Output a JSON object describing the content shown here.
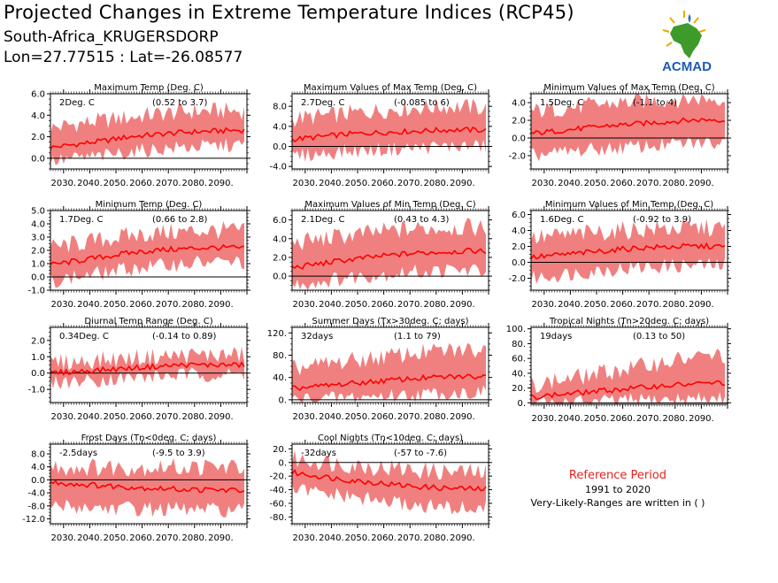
{
  "header": {
    "title": "Projected Changes in Extreme Temperature Indices (RCP45)",
    "location": "South-Africa_KRUGERSDORP",
    "coordinates": "Lon=27.77515 : Lat=-26.08577"
  },
  "logo": {
    "text": "ACMAD",
    "icon": "africa-map-icon"
  },
  "reference": {
    "title": "Reference Period",
    "years": "1991 to 2020",
    "note": "Very-Likely-Ranges are written in ( )"
  },
  "colors": {
    "band": "#f08080",
    "line": "#ff0000",
    "reference_title": "#e8221b"
  },
  "x_ticks": [
    "2030.",
    "2040.",
    "2050.",
    "2060.",
    "2070.",
    "2080.",
    "2090."
  ],
  "chart_data": [
    {
      "type": "area",
      "title": "Maximum Temp (Deg. C)",
      "mean_label": "2Deg. C",
      "range_label": "(0.52 to 3.7)",
      "x": [
        2025,
        2035,
        2045,
        2055,
        2065,
        2075,
        2085,
        2095,
        2099
      ],
      "mean": [
        1.0,
        1.3,
        1.6,
        2.0,
        2.2,
        2.4,
        2.5,
        2.6,
        2.6
      ],
      "low": [
        -0.3,
        0.0,
        0.2,
        0.6,
        0.8,
        1.0,
        1.1,
        1.2,
        1.2
      ],
      "high": [
        2.8,
        3.2,
        3.5,
        3.8,
        4.1,
        4.3,
        4.4,
        4.4,
        4.4
      ],
      "ylim": [
        -1.0,
        6.0
      ],
      "yticks": [
        0.0,
        2.0,
        4.0,
        6.0
      ],
      "ytick_labels": [
        "0.0",
        "2.0",
        "4.0",
        "6.0"
      ]
    },
    {
      "type": "area",
      "title": "Maximum Values of Max Temp (Deg. C)",
      "mean_label": "2.7Deg. C",
      "range_label": "(-0.085 to 6)",
      "x": [
        2025,
        2035,
        2045,
        2055,
        2065,
        2075,
        2085,
        2095,
        2099
      ],
      "mean": [
        1.4,
        1.9,
        2.4,
        2.7,
        2.9,
        3.1,
        3.3,
        3.3,
        3.2
      ],
      "low": [
        -2.0,
        -1.5,
        -1.0,
        -0.8,
        -0.5,
        -0.2,
        0.0,
        0.0,
        0.0
      ],
      "high": [
        5.5,
        6.0,
        6.5,
        7.0,
        7.5,
        7.8,
        8.0,
        7.8,
        7.5
      ],
      "ylim": [
        -4.5,
        10.5
      ],
      "yticks": [
        -4.0,
        0.0,
        4.0,
        8.0
      ],
      "ytick_labels": [
        "-4.0",
        "0.0",
        "4.0",
        "8.0"
      ]
    },
    {
      "type": "area",
      "title": "Minimum Values of Max Temp (Deg. C)",
      "mean_label": "1.5Deg. C",
      "range_label": "(-1.1 to 4)",
      "x": [
        2025,
        2035,
        2045,
        2055,
        2065,
        2075,
        2085,
        2095,
        2099
      ],
      "mean": [
        0.5,
        0.8,
        1.1,
        1.4,
        1.6,
        1.8,
        2.0,
        2.1,
        2.0
      ],
      "low": [
        -2.0,
        -1.7,
        -1.4,
        -1.2,
        -1.0,
        -0.8,
        -0.6,
        -0.5,
        -0.5
      ],
      "high": [
        3.0,
        3.3,
        3.6,
        3.9,
        4.1,
        4.3,
        4.4,
        4.5,
        4.5
      ],
      "ylim": [
        -3.5,
        5.0
      ],
      "yticks": [
        -2.0,
        0.0,
        2.0,
        4.0
      ],
      "ytick_labels": [
        "-2.0",
        "0.0",
        "2.0",
        "4.0"
      ]
    },
    {
      "type": "area",
      "title": "Minimum Temp (Deg. C)",
      "mean_label": "1.7Deg. C",
      "range_label": "(0.66 to 2.8)",
      "x": [
        2025,
        2035,
        2045,
        2055,
        2065,
        2075,
        2085,
        2095,
        2099
      ],
      "mean": [
        0.9,
        1.2,
        1.5,
        1.8,
        2.0,
        2.1,
        2.2,
        2.2,
        2.1
      ],
      "low": [
        -0.3,
        0.0,
        0.3,
        0.6,
        0.8,
        1.0,
        1.1,
        1.1,
        1.1
      ],
      "high": [
        2.2,
        2.5,
        2.8,
        3.1,
        3.3,
        3.4,
        3.5,
        3.5,
        3.4
      ],
      "ylim": [
        -1.0,
        5.0
      ],
      "yticks": [
        -1.0,
        0.0,
        1.0,
        2.0,
        3.0,
        4.0,
        5.0
      ],
      "ytick_labels": [
        "-1.0",
        "0.0",
        "1.0",
        "2.0",
        "3.0",
        "4.0",
        "5.0"
      ]
    },
    {
      "type": "area",
      "title": "Maximum Values of Min Temp (Deg. C)",
      "mean_label": "2.1Deg. C",
      "range_label": "(0.43 to 4.3)",
      "x": [
        2025,
        2035,
        2045,
        2055,
        2065,
        2075,
        2085,
        2095,
        2099
      ],
      "mean": [
        0.9,
        1.3,
        1.7,
        2.0,
        2.3,
        2.5,
        2.6,
        2.7,
        2.6
      ],
      "low": [
        -1.0,
        -0.6,
        -0.2,
        0.1,
        0.3,
        0.5,
        0.6,
        0.6,
        0.6
      ],
      "high": [
        3.5,
        3.9,
        4.3,
        4.6,
        4.9,
        5.1,
        5.2,
        5.2,
        5.1
      ],
      "ylim": [
        -1.5,
        7.0
      ],
      "yticks": [
        0.0,
        2.0,
        4.0,
        6.0
      ],
      "ytick_labels": [
        "0.0",
        "2.0",
        "4.0",
        "6.0"
      ]
    },
    {
      "type": "area",
      "title": "Minimum Values of Min Temp (Deg. C)",
      "mean_label": "1.6Deg. C",
      "range_label": "(-0.92 to 3.9)",
      "x": [
        2025,
        2035,
        2045,
        2055,
        2065,
        2075,
        2085,
        2095,
        2099
      ],
      "mean": [
        0.6,
        0.9,
        1.2,
        1.5,
        1.8,
        1.9,
        2.0,
        2.0,
        1.9
      ],
      "low": [
        -2.0,
        -1.6,
        -1.2,
        -0.9,
        -0.7,
        -0.5,
        -0.4,
        -0.4,
        -0.4
      ],
      "high": [
        3.0,
        3.3,
        3.6,
        3.9,
        4.1,
        4.2,
        4.3,
        4.3,
        4.2
      ],
      "ylim": [
        -3.5,
        6.5
      ],
      "yticks": [
        -2.0,
        0.0,
        2.0,
        4.0,
        6.0
      ],
      "ytick_labels": [
        "-2.0",
        "0.0",
        "2.0",
        "4.0",
        "6.0"
      ]
    },
    {
      "type": "area",
      "title": "Diurnal Temp Range (Deg. C)",
      "mean_label": "0.34Deg. C",
      "range_label": "(-0.14 to 0.89)",
      "x": [
        2025,
        2035,
        2045,
        2055,
        2065,
        2075,
        2085,
        2095,
        2099
      ],
      "mean": [
        0.0,
        0.1,
        0.2,
        0.3,
        0.4,
        0.5,
        0.5,
        0.5,
        0.5
      ],
      "low": [
        -0.6,
        -0.5,
        -0.4,
        -0.3,
        -0.2,
        -0.1,
        -0.1,
        -0.1,
        -0.1
      ],
      "high": [
        0.6,
        0.7,
        0.8,
        0.9,
        1.0,
        1.1,
        1.1,
        1.1,
        1.1
      ],
      "ylim": [
        -1.8,
        2.8
      ],
      "yticks": [
        -1.0,
        0.0,
        1.0,
        2.0
      ],
      "ytick_labels": [
        "-1.0",
        "0.0",
        "1.0",
        "2.0"
      ]
    },
    {
      "type": "area",
      "title": "Summer Days (Tx>30deg. C; days)",
      "mean_label": "32days",
      "range_label": "(1.1 to 79)",
      "x": [
        2025,
        2035,
        2045,
        2055,
        2065,
        2075,
        2085,
        2095,
        2099
      ],
      "mean": [
        20,
        24,
        28,
        32,
        36,
        39,
        41,
        42,
        42
      ],
      "low": [
        0,
        2,
        4,
        6,
        8,
        10,
        12,
        13,
        13
      ],
      "high": [
        55,
        62,
        68,
        74,
        80,
        85,
        88,
        90,
        90
      ],
      "ylim": [
        -5,
        130
      ],
      "yticks": [
        0,
        40,
        80,
        120
      ],
      "ytick_labels": [
        "0.",
        "40.",
        "80.",
        "120."
      ]
    },
    {
      "type": "area",
      "title": "Tropical Nights (Tn>20deg. C; days)",
      "mean_label": "19days",
      "range_label": "(0.13 to 50)",
      "x": [
        2025,
        2035,
        2045,
        2055,
        2065,
        2075,
        2085,
        2095,
        2099
      ],
      "mean": [
        8,
        11,
        14,
        17,
        20,
        23,
        25,
        27,
        27
      ],
      "low": [
        0,
        0,
        1,
        2,
        3,
        4,
        5,
        6,
        6
      ],
      "high": [
        25,
        30,
        36,
        42,
        48,
        55,
        60,
        64,
        64
      ],
      "ylim": [
        -2,
        102
      ],
      "yticks": [
        0,
        20,
        40,
        60,
        80,
        100
      ],
      "ytick_labels": [
        "0.",
        "20.",
        "40.",
        "60.",
        "80.",
        "100."
      ]
    },
    {
      "type": "area",
      "title": "Frost Days (Tn<0deg. C; days)",
      "mean_label": "-2.5days",
      "range_label": "(-9.5 to 3.9)",
      "x": [
        2025,
        2035,
        2045,
        2055,
        2065,
        2075,
        2085,
        2095,
        2099
      ],
      "mean": [
        -0.8,
        -1.3,
        -1.8,
        -2.2,
        -2.6,
        -2.9,
        -3.1,
        -3.2,
        -3.2
      ],
      "low": [
        -8.0,
        -8.3,
        -8.6,
        -8.8,
        -9.0,
        -9.2,
        -9.3,
        -9.4,
        -9.4
      ],
      "high": [
        3.9,
        3.9,
        3.9,
        3.9,
        3.9,
        3.9,
        3.9,
        3.9,
        3.9
      ],
      "ylim": [
        -13.5,
        11.0
      ],
      "yticks": [
        -12.0,
        -8.0,
        -4.0,
        0.0,
        4.0,
        8.0
      ],
      "ytick_labels": [
        "-12.0",
        "-8.0",
        "-4.0",
        "0.0",
        "4.0",
        "8.0"
      ]
    },
    {
      "type": "area",
      "title": "Cool Nights (Tn<10deg. C; days)",
      "mean_label": "-32days",
      "range_label": "(-57 to -7.6)",
      "x": [
        2025,
        2035,
        2045,
        2055,
        2065,
        2075,
        2085,
        2095,
        2099
      ],
      "mean": [
        -15,
        -20,
        -25,
        -29,
        -33,
        -36,
        -38,
        -39,
        -39
      ],
      "low": [
        -40,
        -45,
        -50,
        -55,
        -60,
        -64,
        -67,
        -68,
        -68
      ],
      "high": [
        5,
        2,
        -2,
        -6,
        -9,
        -12,
        -14,
        -15,
        -15
      ],
      "ylim": [
        -90,
        27
      ],
      "yticks": [
        -80,
        -60,
        -40,
        -20,
        0,
        20
      ],
      "ytick_labels": [
        "-80.",
        "-60.",
        "-40.",
        "-20.",
        "0.",
        "20."
      ]
    }
  ]
}
